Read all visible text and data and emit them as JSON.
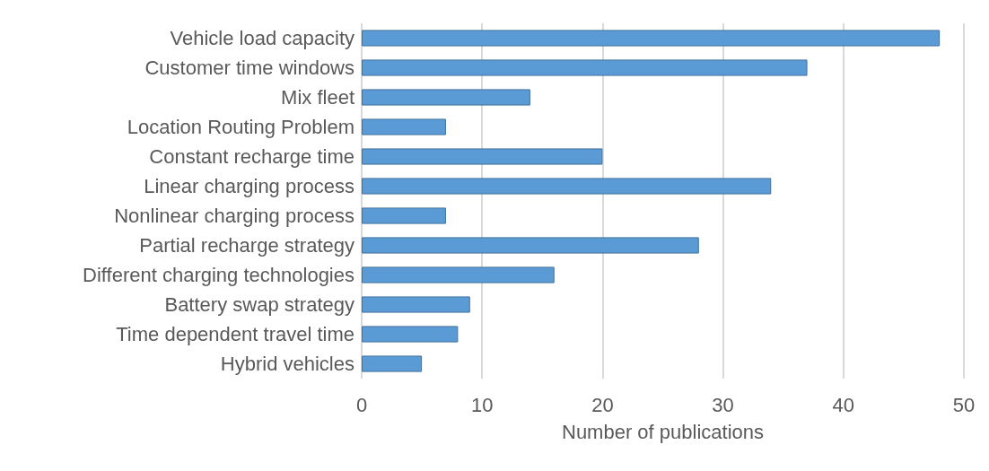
{
  "chart_data": {
    "type": "bar",
    "orientation": "horizontal",
    "xlabel": "Number of publications",
    "categories": [
      "Vehicle load capacity",
      "Customer time windows",
      "Mix fleet",
      "Location Routing Problem",
      "Constant recharge time",
      "Linear charging process",
      "Nonlinear charging process",
      "Partial recharge strategy",
      "Different charging technologies",
      "Battery swap strategy",
      "Time dependent travel time",
      "Hybrid vehicles"
    ],
    "values": [
      48,
      37,
      14,
      7,
      20,
      34,
      7,
      28,
      16,
      9,
      8,
      5
    ],
    "color": "#5b9bd5",
    "xlim": [
      0,
      50
    ],
    "xticks": [
      0,
      10,
      20,
      30,
      40,
      50
    ],
    "grid": "x"
  }
}
